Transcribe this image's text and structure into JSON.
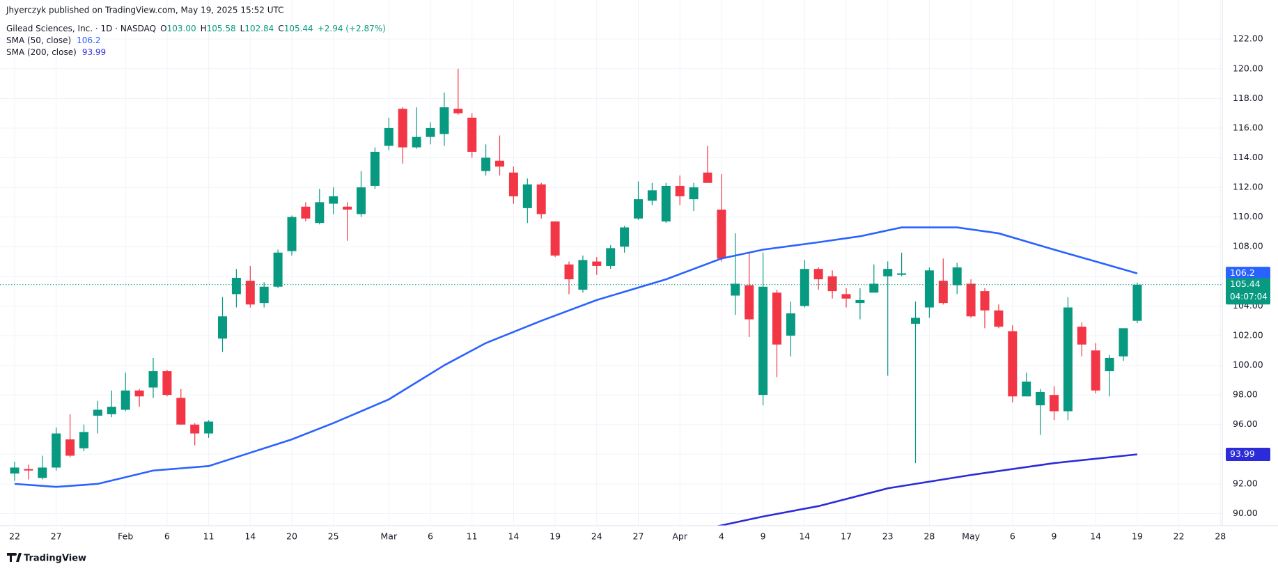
{
  "header": {
    "publisher": "Jhyerczyk published on TradingView.com, May 19, 2025 15:52 UTC",
    "symbol": "Gilead Sciences, Inc. · 1D · NASDAQ",
    "ohlc": [
      {
        "key": "O",
        "value": "103.00"
      },
      {
        "key": "H",
        "value": "105.58"
      },
      {
        "key": "L",
        "value": "102.84"
      },
      {
        "key": "C",
        "value": "105.44"
      }
    ],
    "change": "+2.94 (+2.87%)"
  },
  "footer": {
    "brand": "TradingView"
  },
  "chart_data": {
    "type": "candlestick",
    "categories": [
      "Jan 22",
      "Jan 23",
      "Jan 24",
      "Jan 27",
      "Jan 28",
      "Jan 29",
      "Jan 30",
      "Jan 31",
      "Feb 3",
      "Feb 4",
      "Feb 5",
      "Feb 6",
      "Feb 7",
      "Feb 10",
      "Feb 11",
      "Feb 12",
      "Feb 13",
      "Feb 14",
      "Feb 18",
      "Feb 19",
      "Feb 20",
      "Feb 21",
      "Feb 24",
      "Feb 25",
      "Feb 26",
      "Feb 27",
      "Feb 28",
      "Mar 3",
      "Mar 4",
      "Mar 5",
      "Mar 6",
      "Mar 7",
      "Mar 10",
      "Mar 11",
      "Mar 12",
      "Mar 13",
      "Mar 14",
      "Mar 17",
      "Mar 18",
      "Mar 19",
      "Mar 20",
      "Mar 21",
      "Mar 24",
      "Mar 25",
      "Mar 26",
      "Mar 27",
      "Mar 28",
      "Mar 31",
      "Apr 1",
      "Apr 2",
      "Apr 3",
      "Apr 4",
      "Apr 7",
      "Apr 8",
      "Apr 9",
      "Apr 10",
      "Apr 11",
      "Apr 14",
      "Apr 15",
      "Apr 16",
      "Apr 17",
      "Apr 21",
      "Apr 22",
      "Apr 23",
      "Apr 24",
      "Apr 25",
      "Apr 28",
      "Apr 29",
      "Apr 30",
      "May 1",
      "May 2",
      "May 5",
      "May 6",
      "May 7",
      "May 8",
      "May 9",
      "May 12",
      "May 13",
      "May 14",
      "May 15",
      "May 16",
      "May 19",
      "May 20",
      "May 21",
      "May 22",
      "May 23",
      "May 27",
      "May 28"
    ],
    "open": [
      92.7,
      93.0,
      92.4,
      93.1,
      95.0,
      94.4,
      96.6,
      96.7,
      97.0,
      98.3,
      98.5,
      99.6,
      97.8,
      96.0,
      95.4,
      101.8,
      104.8,
      105.7,
      104.2,
      105.3,
      107.7,
      110.7,
      109.6,
      110.9,
      110.7,
      110.2,
      112.1,
      114.8,
      117.3,
      114.7,
      115.4,
      115.6,
      117.3,
      116.7,
      113.1,
      113.8,
      113.0,
      110.6,
      112.2,
      109.7,
      106.8,
      105.1,
      107.0,
      106.7,
      108.0,
      109.9,
      111.1,
      109.7,
      112.1,
      111.2,
      113.0,
      110.5,
      104.7,
      105.4,
      98.0,
      104.9,
      102.0,
      104.0,
      106.5,
      106.0,
      104.8,
      104.2,
      104.9,
      106.0,
      106.1,
      102.8,
      103.9,
      105.7,
      105.4,
      105.5,
      105.0,
      103.7,
      102.3,
      97.9,
      97.3,
      98.0,
      96.9,
      102.6,
      101.0,
      99.6,
      100.6,
      103.0,
      null,
      null,
      null,
      null,
      null,
      null
    ],
    "high": [
      93.5,
      93.3,
      93.9,
      95.8,
      96.7,
      96.0,
      97.6,
      98.3,
      99.5,
      98.4,
      100.5,
      99.7,
      98.4,
      96.1,
      96.3,
      104.6,
      106.5,
      106.7,
      105.6,
      107.8,
      110.1,
      111.0,
      111.9,
      112.0,
      111.0,
      113.1,
      114.7,
      116.7,
      117.4,
      117.4,
      116.4,
      118.4,
      120.0,
      117.0,
      114.9,
      115.5,
      113.4,
      112.6,
      112.3,
      109.7,
      107.0,
      107.4,
      107.3,
      108.1,
      109.4,
      112.4,
      112.3,
      112.3,
      112.8,
      112.3,
      114.8,
      112.9,
      108.9,
      107.6,
      107.6,
      105.1,
      104.3,
      107.1,
      106.6,
      106.4,
      105.2,
      105.2,
      106.8,
      107.0,
      107.6,
      104.3,
      106.6,
      107.2,
      106.9,
      105.8,
      105.2,
      104.1,
      102.7,
      99.5,
      98.4,
      98.6,
      104.6,
      102.9,
      101.5,
      100.7,
      102.5,
      105.58,
      null,
      null,
      null,
      null,
      null,
      null
    ],
    "low": [
      92.2,
      92.3,
      92.3,
      92.9,
      93.8,
      94.2,
      95.4,
      96.5,
      96.9,
      97.2,
      97.8,
      97.9,
      96.0,
      94.6,
      95.1,
      100.9,
      103.9,
      103.9,
      103.9,
      105.2,
      107.4,
      109.7,
      109.5,
      110.2,
      108.4,
      110.0,
      111.9,
      114.5,
      113.6,
      114.6,
      114.9,
      114.8,
      116.9,
      114.0,
      112.8,
      112.8,
      110.9,
      109.6,
      109.9,
      107.3,
      104.8,
      104.9,
      106.1,
      106.5,
      107.6,
      109.8,
      110.8,
      109.6,
      110.8,
      110.4,
      112.3,
      107.0,
      103.4,
      101.9,
      97.3,
      99.2,
      100.6,
      103.9,
      105.1,
      104.5,
      103.9,
      103.1,
      104.9,
      99.3,
      106.0,
      93.4,
      103.2,
      104.1,
      104.8,
      103.2,
      102.5,
      102.5,
      97.5,
      97.9,
      95.3,
      96.3,
      96.3,
      100.6,
      98.1,
      97.9,
      100.3,
      102.84,
      null,
      null,
      null,
      null,
      null,
      null
    ],
    "close": [
      93.1,
      92.9,
      93.1,
      95.4,
      93.9,
      95.5,
      97.0,
      97.2,
      98.3,
      97.9,
      99.6,
      98.0,
      96.0,
      95.4,
      96.2,
      103.3,
      105.9,
      104.1,
      105.3,
      107.6,
      110.0,
      109.9,
      111.0,
      111.4,
      110.5,
      112.0,
      114.4,
      116.0,
      114.7,
      115.4,
      116.0,
      117.4,
      117.0,
      114.4,
      114.0,
      113.4,
      111.4,
      112.2,
      110.2,
      107.4,
      105.8,
      107.1,
      106.7,
      107.9,
      109.3,
      111.2,
      111.8,
      112.1,
      111.4,
      112.0,
      112.3,
      107.2,
      105.5,
      103.1,
      105.3,
      101.4,
      103.5,
      106.5,
      105.8,
      105.0,
      104.5,
      104.4,
      105.5,
      106.5,
      106.2,
      103.2,
      106.4,
      104.2,
      106.6,
      103.3,
      103.7,
      102.6,
      97.9,
      98.9,
      98.2,
      96.9,
      103.9,
      101.4,
      98.3,
      100.5,
      102.5,
      105.44,
      null,
      null,
      null,
      null,
      null,
      null
    ],
    "up_color": "#089981",
    "down_color": "#f23645",
    "series": [
      {
        "name": "SMA (50, close)",
        "color": "#2962ff",
        "x": [
          "Jan 22",
          "Jan 27",
          "Jan 30",
          "Feb 5",
          "Feb 11",
          "Feb 14",
          "Feb 20",
          "Feb 25",
          "Mar 3",
          "Mar 7",
          "Mar 12",
          "Mar 18",
          "Mar 24",
          "Mar 31",
          "Apr 4",
          "Apr 9",
          "Apr 15",
          "Apr 21",
          "Apr 24",
          "Apr 30",
          "May 5",
          "May 9",
          "May 14",
          "May 19"
        ],
        "values": [
          92.0,
          91.8,
          92.0,
          92.9,
          93.2,
          94.1,
          95.0,
          96.1,
          97.7,
          100.0,
          101.5,
          103.0,
          104.4,
          105.8,
          107.2,
          107.8,
          108.3,
          108.7,
          109.3,
          109.3,
          108.9,
          107.8,
          107.0,
          106.2
        ]
      },
      {
        "name": "SMA (200, close)",
        "color": "#2b2bd9",
        "x": [
          "Apr 3",
          "Apr 9",
          "Apr 15",
          "Apr 23",
          "May 1",
          "May 9",
          "May 19"
        ],
        "values": [
          89.0,
          89.8,
          90.5,
          91.7,
          92.6,
          93.4,
          93.99
        ]
      }
    ],
    "ylim": [
      89.2,
      123.3
    ],
    "yticks": [
      {
        "value": 90,
        "label": "90.00"
      },
      {
        "value": 92,
        "label": "92.00"
      },
      {
        "value": 94,
        "label": "94.00"
      },
      {
        "value": 96,
        "label": "96.00"
      },
      {
        "value": 98,
        "label": "98.00"
      },
      {
        "value": 100,
        "label": "100.00"
      },
      {
        "value": 102,
        "label": "102.00"
      },
      {
        "value": 104,
        "label": "104.00"
      },
      {
        "value": 106,
        "label": "106.00"
      },
      {
        "value": 108,
        "label": "108.00"
      },
      {
        "value": 110,
        "label": "110.00"
      },
      {
        "value": 112,
        "label": "112.00"
      },
      {
        "value": 114,
        "label": "114.00"
      },
      {
        "value": 116,
        "label": "116.00"
      },
      {
        "value": 118,
        "label": "118.00"
      },
      {
        "value": 120,
        "label": "120.00"
      },
      {
        "value": 122,
        "label": "122.00"
      }
    ],
    "xticks": [
      {
        "value": "Jan 22",
        "label": "22"
      },
      {
        "value": "Jan 27",
        "label": "27"
      },
      {
        "value": "Feb 3",
        "label": "Feb"
      },
      {
        "value": "Feb 6",
        "label": "6"
      },
      {
        "value": "Feb 11",
        "label": "11"
      },
      {
        "value": "Feb 14",
        "label": "14"
      },
      {
        "value": "Feb 20",
        "label": "20"
      },
      {
        "value": "Feb 25",
        "label": "25"
      },
      {
        "value": "Mar 3",
        "label": "Mar"
      },
      {
        "value": "Mar 6",
        "label": "6"
      },
      {
        "value": "Mar 11",
        "label": "11"
      },
      {
        "value": "Mar 14",
        "label": "14"
      },
      {
        "value": "Mar 19",
        "label": "19"
      },
      {
        "value": "Mar 24",
        "label": "24"
      },
      {
        "value": "Mar 27",
        "label": "27"
      },
      {
        "value": "Apr 1",
        "label": "Apr"
      },
      {
        "value": "Apr 4",
        "label": "4"
      },
      {
        "value": "Apr 9",
        "label": "9"
      },
      {
        "value": "Apr 14",
        "label": "14"
      },
      {
        "value": "Apr 17",
        "label": "17"
      },
      {
        "value": "Apr 23",
        "label": "23"
      },
      {
        "value": "Apr 28",
        "label": "28"
      },
      {
        "value": "May 1",
        "label": "May"
      },
      {
        "value": "May 6",
        "label": "6"
      },
      {
        "value": "May 9",
        "label": "9"
      },
      {
        "value": "May 14",
        "label": "14"
      },
      {
        "value": "May 19",
        "label": "19"
      },
      {
        "value": "May 22",
        "label": "22"
      },
      {
        "value": "May 28",
        "label": "28"
      }
    ],
    "grid": true,
    "countdown": "04:07:04"
  }
}
